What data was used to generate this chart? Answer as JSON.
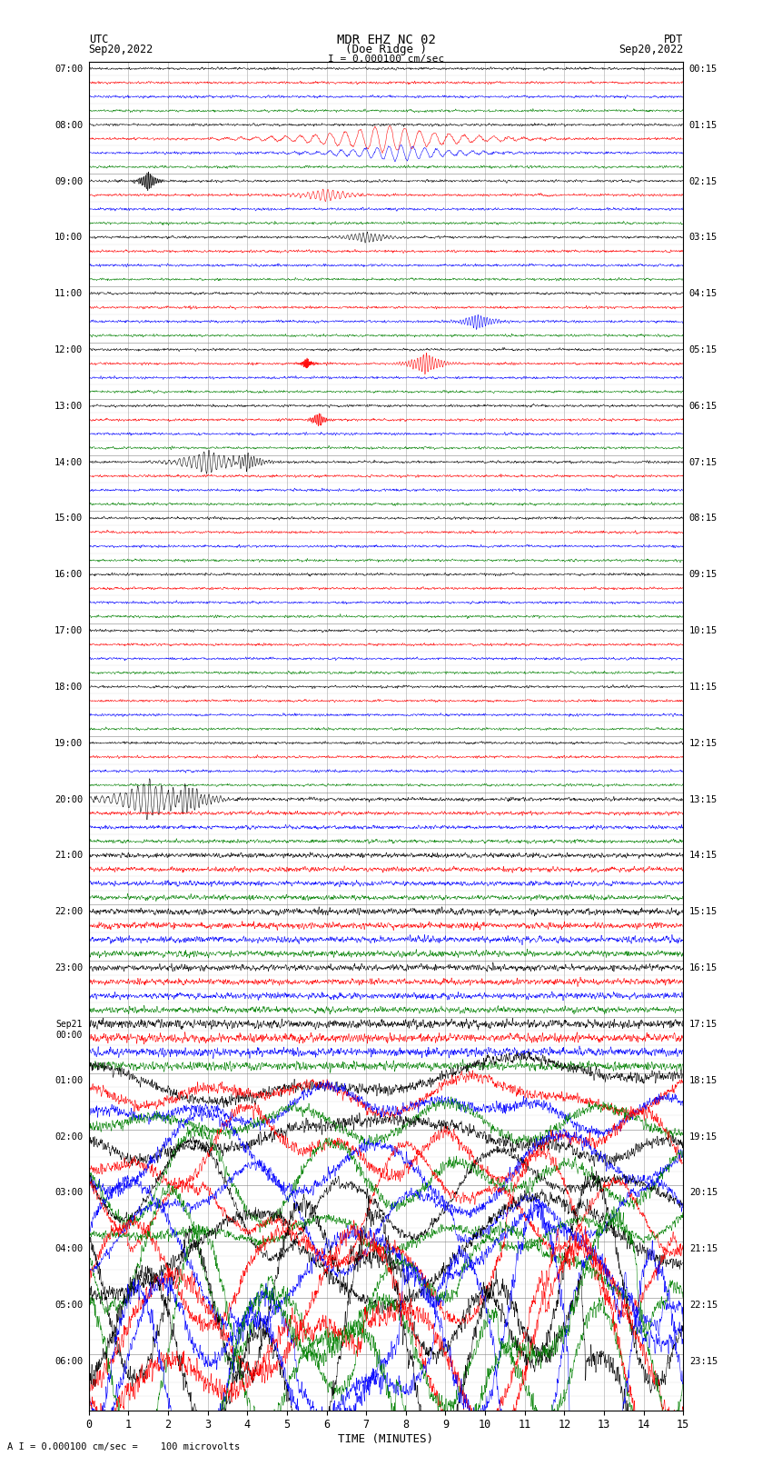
{
  "title_line1": "MDR EHZ NC 02",
  "title_line2": "(Doe Ridge )",
  "scale_label": "I = 0.000100 cm/sec",
  "utc_label_line1": "UTC",
  "utc_label_line2": "Sep20,2022",
  "pdt_label_line1": "PDT",
  "pdt_label_line2": "Sep20,2022",
  "bottom_label": "A I = 0.000100 cm/sec =    100 microvolts",
  "xlabel": "TIME (MINUTES)",
  "utc_times_left": [
    "07:00",
    "08:00",
    "09:00",
    "10:00",
    "11:00",
    "12:00",
    "13:00",
    "14:00",
    "15:00",
    "16:00",
    "17:00",
    "18:00",
    "19:00",
    "20:00",
    "21:00",
    "22:00",
    "23:00",
    "Sep21\n00:00",
    "01:00",
    "02:00",
    "03:00",
    "04:00",
    "05:00",
    "06:00"
  ],
  "pdt_times_right": [
    "00:15",
    "01:15",
    "02:15",
    "03:15",
    "04:15",
    "05:15",
    "06:15",
    "07:15",
    "08:15",
    "09:15",
    "10:15",
    "11:15",
    "12:15",
    "13:15",
    "14:15",
    "15:15",
    "16:15",
    "17:15",
    "18:15",
    "19:15",
    "20:15",
    "21:15",
    "22:15",
    "23:15"
  ],
  "n_rows": 24,
  "n_traces_per_row": 4,
  "colors": [
    "black",
    "red",
    "blue",
    "green"
  ],
  "bg_color": "#ffffff",
  "xmin": 0,
  "xmax": 15,
  "xticks": [
    0,
    1,
    2,
    3,
    4,
    5,
    6,
    7,
    8,
    9,
    10,
    11,
    12,
    13,
    14,
    15
  ]
}
